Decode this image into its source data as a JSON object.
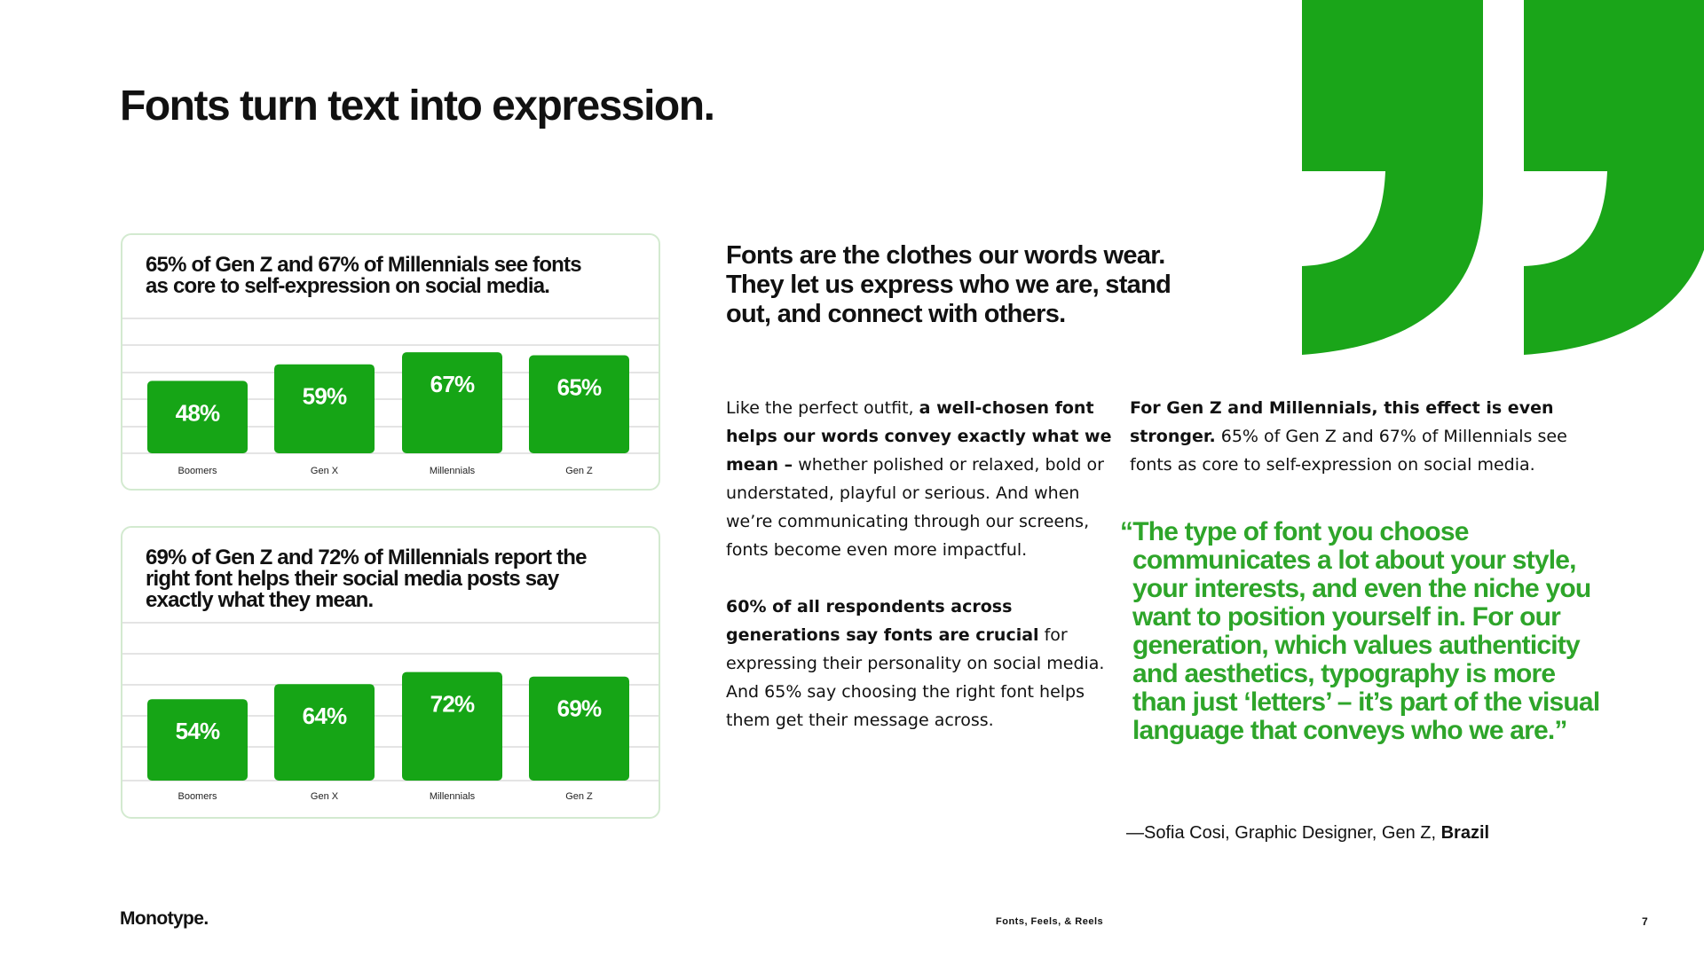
{
  "header": {
    "title": "Fonts turn text into expression."
  },
  "chart_data": [
    {
      "type": "bar",
      "title": "65% of Gen Z and 67% of Millennials see fonts as core to self-expression on social media.",
      "categories": [
        "Boomers",
        "Gen X",
        "Millennials",
        "Gen Z"
      ],
      "values": [
        48,
        59,
        67,
        65
      ],
      "value_labels": [
        "48%",
        "59%",
        "67%",
        "65%"
      ],
      "color": "#16a516"
    },
    {
      "type": "bar",
      "title": "69% of Gen Z and 72% of Millennials report the right font helps their social media posts say exactly what they mean.",
      "categories": [
        "Boomers",
        "Gen X",
        "Millennials",
        "Gen Z"
      ],
      "values": [
        54,
        64,
        72,
        69
      ],
      "value_labels": [
        "54%",
        "64%",
        "72%",
        "69%"
      ],
      "color": "#16a516"
    }
  ],
  "statement": "Fonts are the clothes our words wear. They let us express who we are, stand out, and connect with others.",
  "body": {
    "paragraph_1": {
      "lead": "Like the perfect outfit, ",
      "bold": "a well-chosen font helps our words convey exactly what we mean –",
      "rest": " whether polished or relaxed, bold or understated, playful or serious. And when we’re communicating through our screens, fonts become even more impactful."
    },
    "paragraph_2": {
      "bold": "60% of all respondents across generations say fonts are crucial",
      "rest": " for expressing their personality on social media. And 65% say choosing the right font helps them get their message across."
    },
    "paragraph_3": {
      "bold": "For Gen Z and Millennials, this effect is even stronger.",
      "rest": " 65% of Gen Z and 67% of Millennials see fonts as core to self-expression on social media."
    }
  },
  "quote": {
    "text": "“The type of font you choose communicates a lot about your style, your interests, and even the niche you want to position yourself in. For our generation, which values authenticity and aesthetics, typography is more than just ‘letters’ – it’s part of the visual language that conveys who we are.”",
    "attribution": "—Sofia Cosi, Graphic Designer, Gen Z, ",
    "attribution_bold": "Brazil"
  },
  "footer": {
    "brand": "Monotype.",
    "report": "Fonts, Feels, & Reels",
    "page": "7"
  }
}
